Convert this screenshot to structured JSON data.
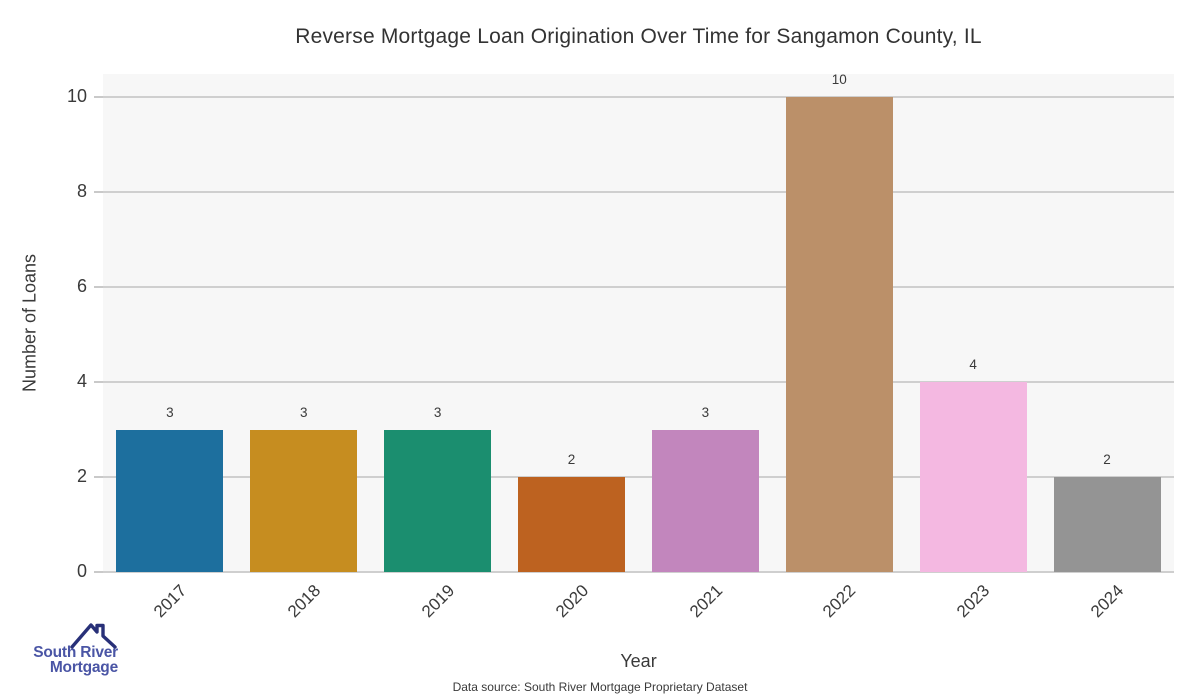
{
  "title": "Reverse Mortgage Loan Origination Over Time for Sangamon County, IL",
  "chart_data": {
    "type": "bar",
    "categories": [
      "2017",
      "2018",
      "2019",
      "2020",
      "2021",
      "2022",
      "2023",
      "2024"
    ],
    "values": [
      3,
      3,
      3,
      2,
      3,
      10,
      4,
      2
    ],
    "bar_colors": [
      "#1d6f9e",
      "#c68d20",
      "#1b8e6f",
      "#bd6220",
      "#c286bd",
      "#bb9069",
      "#f4b8e1",
      "#949494"
    ],
    "value_labels": [
      "3",
      "3",
      "3",
      "2",
      "3",
      "10",
      "4",
      "2"
    ],
    "title": "Reverse Mortgage Loan Origination Over Time for Sangamon County, IL",
    "xlabel": "Year",
    "ylabel": "Number of Loans",
    "ylim": [
      0,
      10
    ],
    "yticks": [
      0,
      2,
      4,
      6,
      8,
      10
    ],
    "grid": true,
    "legend": "none",
    "plot_bg_color": "#f7f7f7",
    "grid_color": "#cfcfcf"
  },
  "footer": {
    "data_source": "Data source: South River Mortgage Proprietary Dataset"
  },
  "logo": {
    "line1": "South River",
    "line2": "Mortgage",
    "text_color": "#4a55a5",
    "roof_color": "#283078"
  }
}
